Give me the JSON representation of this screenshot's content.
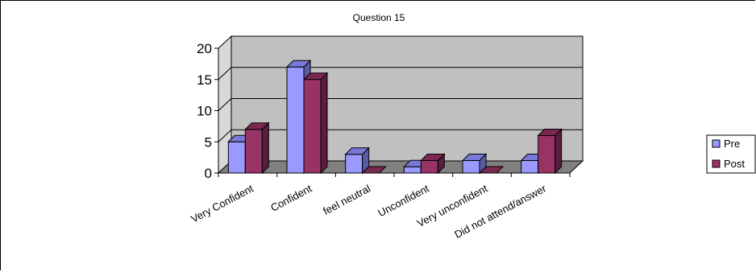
{
  "chart_data": {
    "type": "bar",
    "title": "Question 15",
    "categories": [
      "Very Confident",
      "Confident",
      "feel neutral",
      "Unconfident",
      "Very unconfident",
      "Did not attend/answer"
    ],
    "series": [
      {
        "name": "Pre",
        "values": [
          5,
          17,
          3,
          1,
          2,
          2
        ],
        "color": "#9999ff",
        "side": "#5c5ca3",
        "top": "#7878d6"
      },
      {
        "name": "Post",
        "values": [
          7,
          15,
          0,
          2,
          0,
          6
        ],
        "color": "#993366",
        "side": "#5a1e3c",
        "top": "#7a2850"
      }
    ],
    "ylim": [
      0,
      20
    ],
    "yticks": [
      0,
      5,
      10,
      15,
      20
    ],
    "legend_position": "right",
    "plot_background": "#c0c0c0",
    "floor_color": "#808080"
  }
}
